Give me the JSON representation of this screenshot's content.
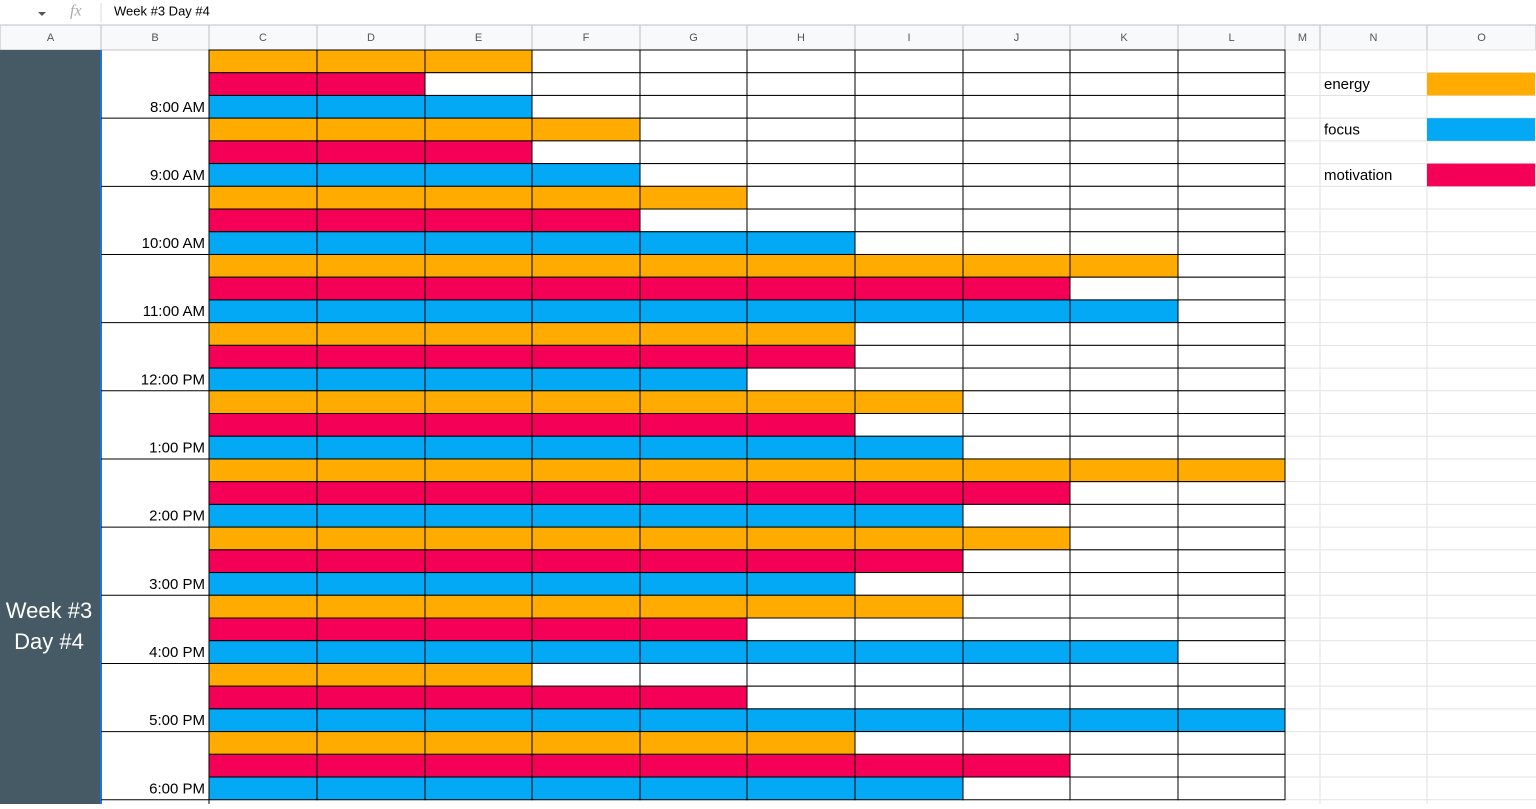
{
  "formula_bar": {
    "cell_value": "Week #3 Day #4"
  },
  "columns": [
    "A",
    "B",
    "C",
    "D",
    "E",
    "F",
    "G",
    "H",
    "I",
    "J",
    "K",
    "L",
    "M",
    "N",
    "O"
  ],
  "sheet": {
    "merged_label": "Week #3 Day #4",
    "rows": [
      {
        "time": null,
        "metric": 0,
        "filled": 3
      },
      {
        "time": null,
        "metric": 2,
        "filled": 2
      },
      {
        "time": "8:00 AM",
        "metric": 1,
        "filled": 3
      },
      {
        "time": null,
        "metric": 0,
        "filled": 4
      },
      {
        "time": null,
        "metric": 2,
        "filled": 3
      },
      {
        "time": "9:00 AM",
        "metric": 1,
        "filled": 4
      },
      {
        "time": null,
        "metric": 0,
        "filled": 5
      },
      {
        "time": null,
        "metric": 2,
        "filled": 4
      },
      {
        "time": "10:00 AM",
        "metric": 1,
        "filled": 6
      },
      {
        "time": null,
        "metric": 0,
        "filled": 9
      },
      {
        "time": null,
        "metric": 2,
        "filled": 8
      },
      {
        "time": "11:00 AM",
        "metric": 1,
        "filled": 9
      },
      {
        "time": null,
        "metric": 0,
        "filled": 6
      },
      {
        "time": null,
        "metric": 2,
        "filled": 6
      },
      {
        "time": "12:00 PM",
        "metric": 1,
        "filled": 5
      },
      {
        "time": null,
        "metric": 0,
        "filled": 7
      },
      {
        "time": null,
        "metric": 2,
        "filled": 6
      },
      {
        "time": "1:00 PM",
        "metric": 1,
        "filled": 7
      },
      {
        "time": null,
        "metric": 0,
        "filled": 10
      },
      {
        "time": null,
        "metric": 2,
        "filled": 8
      },
      {
        "time": "2:00 PM",
        "metric": 1,
        "filled": 7
      },
      {
        "time": null,
        "metric": 0,
        "filled": 8
      },
      {
        "time": null,
        "metric": 2,
        "filled": 7
      },
      {
        "time": "3:00 PM",
        "metric": 1,
        "filled": 6
      },
      {
        "time": null,
        "metric": 0,
        "filled": 7
      },
      {
        "time": null,
        "metric": 2,
        "filled": 5
      },
      {
        "time": "4:00 PM",
        "metric": 1,
        "filled": 9
      },
      {
        "time": null,
        "metric": 0,
        "filled": 3
      },
      {
        "time": null,
        "metric": 2,
        "filled": 5
      },
      {
        "time": "5:00 PM",
        "metric": 1,
        "filled": 10
      },
      {
        "time": null,
        "metric": 0,
        "filled": 6
      },
      {
        "time": null,
        "metric": 2,
        "filled": 8
      },
      {
        "time": "6:00 PM",
        "metric": 1,
        "filled": 7
      }
    ]
  },
  "legend": [
    {
      "label": "energy",
      "color": "#ffab00"
    },
    {
      "label": "focus",
      "color": "#03a9f4"
    },
    {
      "label": "motivation",
      "color": "#f50057"
    }
  ]
}
